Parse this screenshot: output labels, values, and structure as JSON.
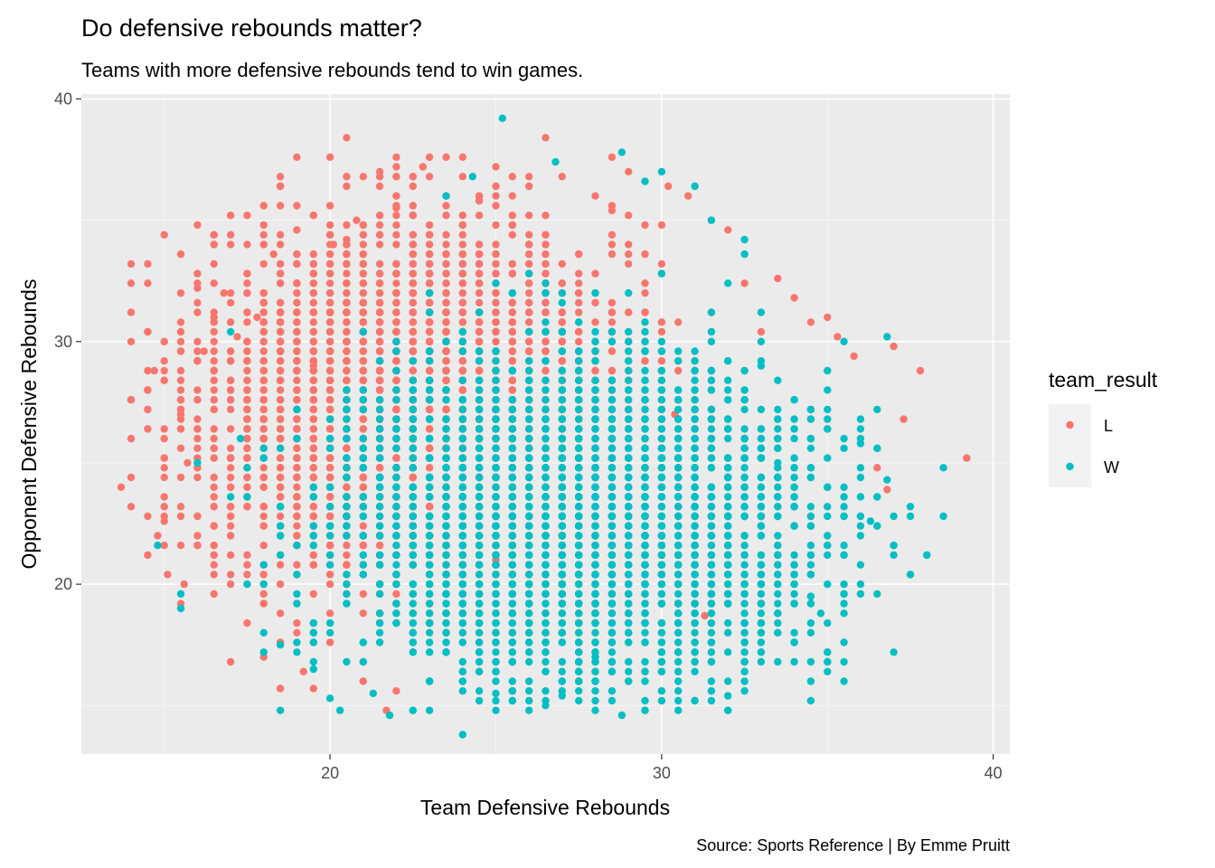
{
  "chart_data": {
    "type": "scatter",
    "title": "Do defensive rebounds matter?",
    "subtitle": "Teams with more defensive rebounds tend to win games.",
    "xlabel": "Team Defensive Rebounds",
    "ylabel": "Opponent Defensive Rebounds",
    "caption": "Source: Sports Reference | By Emme Pruitt",
    "xlim": [
      12.5,
      40.5
    ],
    "ylim": [
      13.0,
      40.2
    ],
    "x_ticks": [
      20,
      30,
      40
    ],
    "y_ticks": [
      20,
      30,
      40
    ],
    "x_tick_labels": [
      "20",
      "30",
      "40"
    ],
    "y_tick_labels": [
      "20",
      "30",
      "40"
    ],
    "grid": true,
    "legend": {
      "title": "team_result",
      "position": "right",
      "entries": [
        {
          "label": "L",
          "color": "#F8766D"
        },
        {
          "label": "W",
          "color": "#00BFC4"
        }
      ]
    },
    "background": "#EBEBEB",
    "series": [
      {
        "name": "L",
        "color": "#F8766D",
        "cloud": {
          "center": [
            22.5,
            27.5
          ],
          "spread": [
            3.2,
            3.6
          ],
          "n": 3800
        },
        "points": [
          [
            13.7,
            24.0
          ],
          [
            14.7,
            28.8
          ],
          [
            14.8,
            22.0
          ],
          [
            15.0,
            22.6
          ],
          [
            15.1,
            20.4
          ],
          [
            15.5,
            27.0
          ],
          [
            15.6,
            20.0
          ],
          [
            15.7,
            25.0
          ],
          [
            16.0,
            26.4
          ],
          [
            16.0,
            32.2
          ],
          [
            16.2,
            29.6
          ],
          [
            16.5,
            31.0
          ],
          [
            16.8,
            32.0
          ],
          [
            17.0,
            22.0
          ],
          [
            17.2,
            30.2
          ],
          [
            17.8,
            31.0
          ],
          [
            18.0,
            34.4
          ],
          [
            18.3,
            33.6
          ],
          [
            18.5,
            15.7
          ],
          [
            19.0,
            34.6
          ],
          [
            19.2,
            16.4
          ],
          [
            19.5,
            15.7
          ],
          [
            20.1,
            34.0
          ],
          [
            20.5,
            34.2
          ],
          [
            20.8,
            35.0
          ],
          [
            21.5,
            37.0
          ],
          [
            21.7,
            14.8
          ],
          [
            22.0,
            35.5
          ],
          [
            22.8,
            37.2
          ],
          [
            24.0,
            36.8
          ],
          [
            24.5,
            35.8
          ],
          [
            25.0,
            36.4
          ],
          [
            28.0,
            36.0
          ],
          [
            28.5,
            35.4
          ],
          [
            29.0,
            37.0
          ],
          [
            30.2,
            36.4
          ],
          [
            30.8,
            36.0
          ],
          [
            32.0,
            34.6
          ],
          [
            33.5,
            32.6
          ],
          [
            34.0,
            31.8
          ],
          [
            34.5,
            30.8
          ],
          [
            35.0,
            31.0
          ],
          [
            35.3,
            30.2
          ],
          [
            35.8,
            29.4
          ],
          [
            36.0,
            22.8
          ],
          [
            36.5,
            24.8
          ],
          [
            36.8,
            23.9
          ],
          [
            37.0,
            29.8
          ],
          [
            37.3,
            26.8
          ],
          [
            37.8,
            28.8
          ],
          [
            39.2,
            25.2
          ],
          [
            18.0,
            17.0
          ],
          [
            19.5,
            29.0
          ],
          [
            25.0,
            21.0
          ],
          [
            30.4,
            27.0
          ],
          [
            31.3,
            18.7
          ]
        ]
      },
      {
        "name": "W",
        "color": "#00BFC4",
        "cloud": {
          "center": [
            27.5,
            22.5
          ],
          "spread": [
            3.5,
            3.2
          ],
          "n": 3800
        },
        "points": [
          [
            14.8,
            21.6
          ],
          [
            15.5,
            19.0
          ],
          [
            15.5,
            19.6
          ],
          [
            16.0,
            25.0
          ],
          [
            17.3,
            26.0
          ],
          [
            18.0,
            18.0
          ],
          [
            18.5,
            17.5
          ],
          [
            19.5,
            16.5
          ],
          [
            20.0,
            15.3
          ],
          [
            20.3,
            14.8
          ],
          [
            21.3,
            15.5
          ],
          [
            21.8,
            14.6
          ],
          [
            22.5,
            14.8
          ],
          [
            23.5,
            36.0
          ],
          [
            24.0,
            13.8
          ],
          [
            24.3,
            36.8
          ],
          [
            25.2,
            39.2
          ],
          [
            26.8,
            37.4
          ],
          [
            28.8,
            37.8
          ],
          [
            28.8,
            14.6
          ],
          [
            29.5,
            36.6
          ],
          [
            30.0,
            37.0
          ],
          [
            31.0,
            36.4
          ],
          [
            31.5,
            35.0
          ],
          [
            32.5,
            34.2
          ],
          [
            33.0,
            29.0
          ],
          [
            33.5,
            25.0
          ],
          [
            34.0,
            22.4
          ],
          [
            34.5,
            19.5
          ],
          [
            34.8,
            18.8
          ],
          [
            35.0,
            28.0
          ],
          [
            35.5,
            30.0
          ],
          [
            36.0,
            25.8
          ],
          [
            36.3,
            22.6
          ],
          [
            36.8,
            30.2
          ],
          [
            36.8,
            24.3
          ],
          [
            37.0,
            22.8
          ],
          [
            37.0,
            21.6
          ],
          [
            31.5,
            16.0
          ],
          [
            32.0,
            15.4
          ],
          [
            30.0,
            16.4
          ],
          [
            27.0,
            15.4
          ],
          [
            26.5,
            15.0
          ],
          [
            25.0,
            15.5
          ],
          [
            28.0,
            17.0
          ]
        ]
      }
    ]
  }
}
